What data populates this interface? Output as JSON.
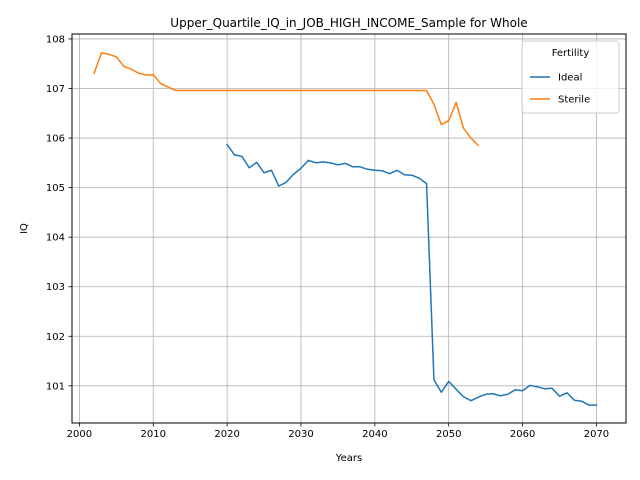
{
  "chart_data": {
    "type": "line",
    "title": "Upper_Quartile_IQ_in_JOB_HIGH_INCOME_Sample for Whole",
    "xlabel": "Years",
    "ylabel": "IQ",
    "xlim": [
      1999,
      2074
    ],
    "ylim": [
      100.25,
      108.1
    ],
    "xticks": [
      2000,
      2010,
      2020,
      2030,
      2040,
      2050,
      2060,
      2070
    ],
    "yticks": [
      101,
      102,
      103,
      104,
      105,
      106,
      107,
      108
    ],
    "grid": true,
    "legend": {
      "title": "Fertility",
      "placement": "top-right"
    },
    "series": [
      {
        "name": "Ideal",
        "color": "#1f77b4",
        "x": [
          2020,
          2021,
          2022,
          2023,
          2024,
          2025,
          2026,
          2027,
          2028,
          2029,
          2030,
          2031,
          2032,
          2033,
          2034,
          2035,
          2036,
          2037,
          2038,
          2039,
          2040,
          2041,
          2042,
          2043,
          2044,
          2045,
          2046,
          2047,
          2048,
          2049,
          2050,
          2051,
          2052,
          2053,
          2054,
          2055,
          2056,
          2057,
          2058,
          2059,
          2060,
          2061,
          2062,
          2063,
          2064,
          2065,
          2066,
          2067,
          2068,
          2069,
          2070
        ],
        "y": [
          105.87,
          105.66,
          105.63,
          105.4,
          105.51,
          105.3,
          105.35,
          105.03,
          105.11,
          105.27,
          105.39,
          105.55,
          105.5,
          105.52,
          105.5,
          105.46,
          105.49,
          105.42,
          105.42,
          105.37,
          105.35,
          105.34,
          105.28,
          105.35,
          105.26,
          105.25,
          105.19,
          105.08,
          101.12,
          100.87,
          101.09,
          100.93,
          100.78,
          100.7,
          100.77,
          100.83,
          100.84,
          100.8,
          100.83,
          100.92,
          100.9,
          101.01,
          100.98,
          100.94,
          100.95,
          100.79,
          100.86,
          100.71,
          100.69,
          100.61,
          100.61
        ]
      },
      {
        "name": "Sterile",
        "color": "#ff7f0e",
        "x": [
          2002,
          2003,
          2004,
          2005,
          2006,
          2007,
          2008,
          2009,
          2010,
          2011,
          2012,
          2013,
          2014,
          2015,
          2016,
          2017,
          2018,
          2019,
          2020,
          2021,
          2022,
          2023,
          2024,
          2025,
          2026,
          2027,
          2028,
          2029,
          2030,
          2031,
          2032,
          2033,
          2034,
          2035,
          2036,
          2037,
          2038,
          2039,
          2040,
          2041,
          2042,
          2043,
          2044,
          2045,
          2046,
          2047,
          2048,
          2049,
          2050,
          2051,
          2052,
          2053,
          2054
        ],
        "y": [
          107.31,
          107.72,
          107.69,
          107.64,
          107.45,
          107.39,
          107.31,
          107.27,
          107.28,
          107.1,
          107.03,
          106.96,
          106.96,
          106.96,
          106.96,
          106.96,
          106.96,
          106.96,
          106.96,
          106.96,
          106.96,
          106.96,
          106.96,
          106.96,
          106.96,
          106.96,
          106.96,
          106.96,
          106.96,
          106.96,
          106.96,
          106.96,
          106.96,
          106.96,
          106.96,
          106.96,
          106.96,
          106.96,
          106.96,
          106.96,
          106.96,
          106.96,
          106.96,
          106.96,
          106.96,
          106.96,
          106.68,
          106.27,
          106.35,
          106.72,
          106.2,
          106.0,
          105.85
        ]
      }
    ]
  }
}
